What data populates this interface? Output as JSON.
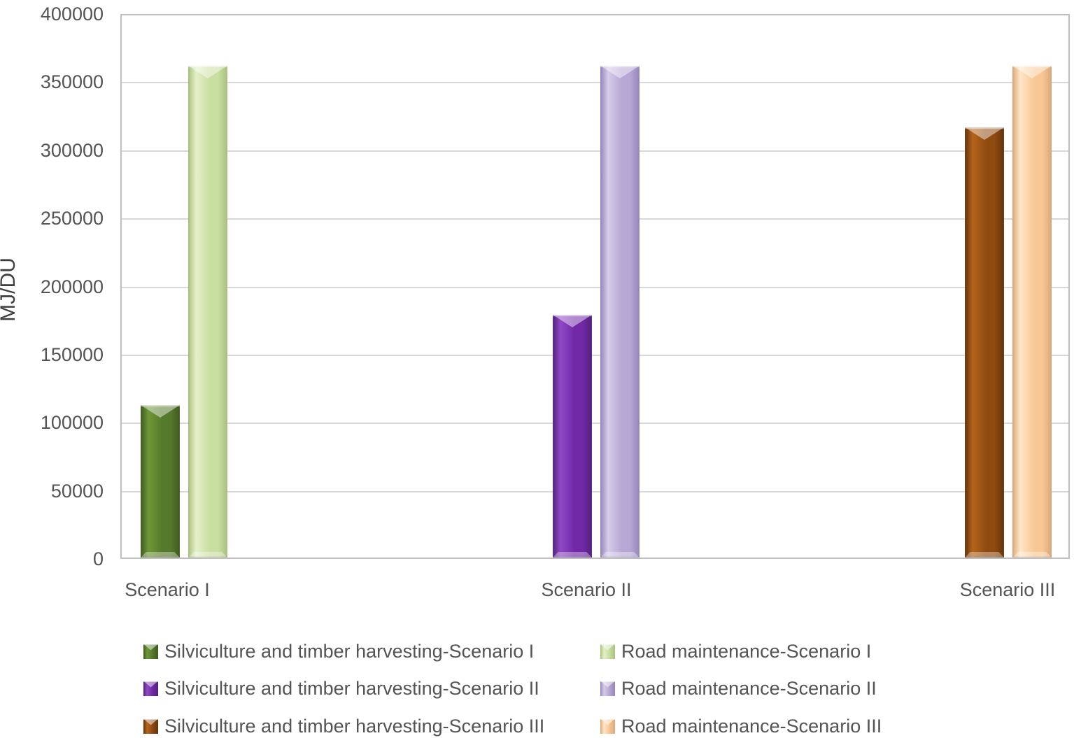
{
  "chart_data": {
    "type": "bar",
    "title": "",
    "xlabel": "",
    "ylabel": "MJ/DU",
    "ylim": [
      0,
      400000
    ],
    "ytick_step": 50000,
    "yticks": [
      "0",
      "50000",
      "100000",
      "150000",
      "200000",
      "250000",
      "300000",
      "350000",
      "400000"
    ],
    "grid": "horizontal",
    "legend_position": "bottom-two-columns",
    "categories": [
      "Scenario I",
      "Scenario II",
      "Scenario III"
    ],
    "series": [
      {
        "name": "Silviculture and timber harvesting-Scenario I",
        "values": [
          112000,
          0,
          0
        ],
        "color": {
          "base": "#567a2b",
          "edge": "#3e5a1e",
          "light": "#6e9738"
        }
      },
      {
        "name": "Road maintenance-Scenario I",
        "values": [
          361000,
          0,
          0
        ],
        "color": {
          "base": "#c9dea1",
          "edge": "#a9c17e",
          "light": "#e4f0c8"
        }
      },
      {
        "name": "Silviculture and timber harvesting-Scenario II",
        "values": [
          0,
          178000,
          0
        ],
        "color": {
          "base": "#7229a8",
          "edge": "#53217b",
          "light": "#9049c5"
        }
      },
      {
        "name": "Road maintenance-Scenario II",
        "values": [
          0,
          361000,
          0
        ],
        "color": {
          "base": "#b7a7d4",
          "edge": "#9585ba",
          "light": "#d6cce9"
        }
      },
      {
        "name": "Silviculture and timber harvesting-Scenario III",
        "values": [
          0,
          0,
          316000
        ],
        "color": {
          "base": "#8f4a10",
          "edge": "#63330a",
          "light": "#b5641b"
        }
      },
      {
        "name": "Road maintenance-Scenario III",
        "values": [
          0,
          0,
          361000
        ],
        "color": {
          "base": "#f9c795",
          "edge": "#dca878",
          "light": "#ffe6c8"
        }
      }
    ]
  }
}
